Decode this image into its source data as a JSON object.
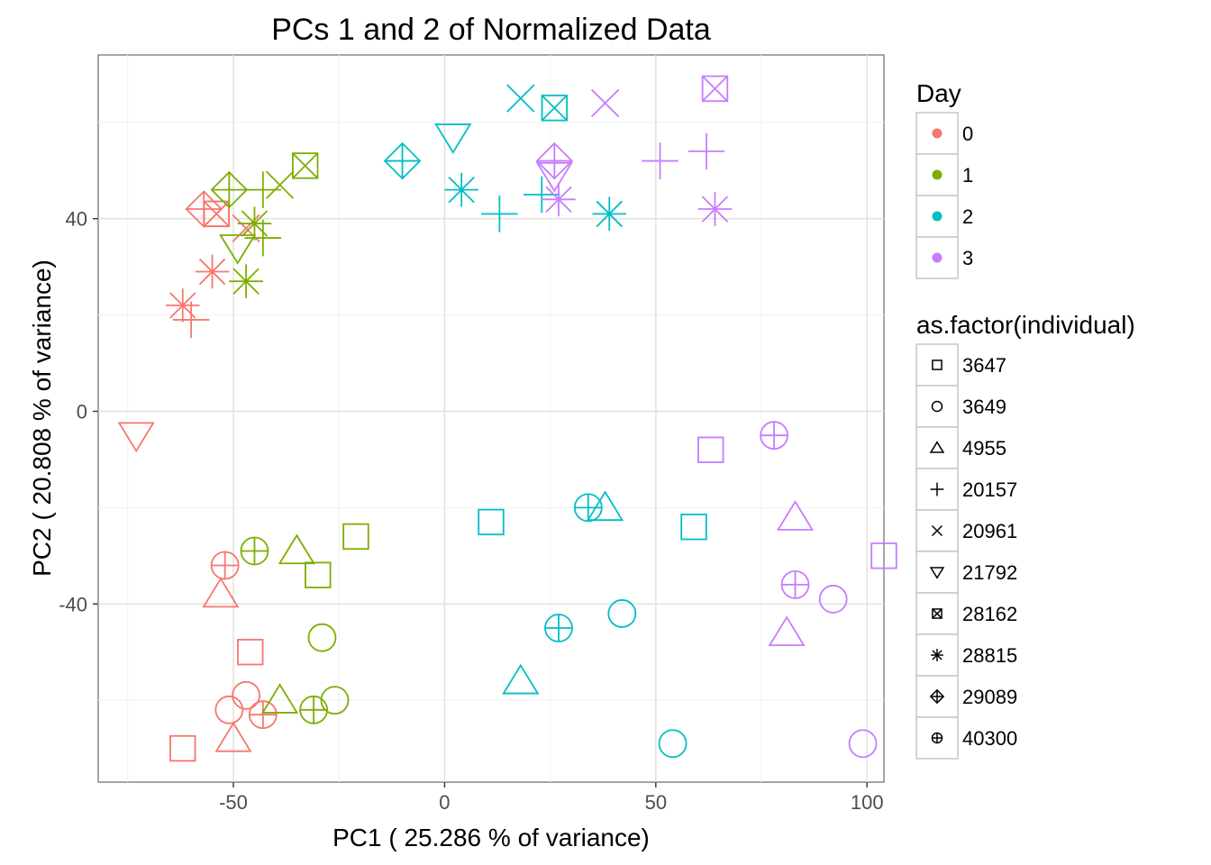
{
  "chart_data": {
    "type": "scatter",
    "title": "PCs 1 and 2 of Normalized Data",
    "xlabel": "PC1 ( 25.286 % of variance)",
    "ylabel": "PC2 ( 20.808 % of variance)",
    "xlim": [
      -82,
      104
    ],
    "ylim": [
      -77,
      74
    ],
    "x_ticks": [
      -50,
      0,
      50,
      100
    ],
    "x_tick_labels": [
      "-50",
      "0",
      "50",
      "100"
    ],
    "y_ticks": [
      -40,
      0,
      40
    ],
    "y_tick_labels": [
      "-40",
      "0",
      "40"
    ],
    "grid": true,
    "legend_position": "right",
    "color_legend": {
      "title": "Day",
      "entries": [
        {
          "label": "0",
          "color": "#F8766D"
        },
        {
          "label": "1",
          "color": "#7CAE00"
        },
        {
          "label": "2",
          "color": "#00BFC4"
        },
        {
          "label": "3",
          "color": "#C77CFF"
        }
      ]
    },
    "shape_legend": {
      "title": "as.factor(individual)",
      "entries": [
        {
          "label": "3647",
          "shape": "square"
        },
        {
          "label": "3649",
          "shape": "circle"
        },
        {
          "label": "4955",
          "shape": "triangle"
        },
        {
          "label": "20157",
          "shape": "plus"
        },
        {
          "label": "20961",
          "shape": "cross"
        },
        {
          "label": "21792",
          "shape": "triangle-down"
        },
        {
          "label": "28162",
          "shape": "square-cross"
        },
        {
          "label": "28815",
          "shape": "asterisk"
        },
        {
          "label": "29089",
          "shape": "diamond-plus"
        },
        {
          "label": "40300",
          "shape": "circle-plus"
        }
      ]
    },
    "points": [
      {
        "x": -62,
        "y": -70,
        "day": "0",
        "individual": "3647"
      },
      {
        "x": -46,
        "y": -50,
        "day": "0",
        "individual": "3647"
      },
      {
        "x": -54,
        "y": 41,
        "day": "0",
        "individual": "3647"
      },
      {
        "x": -51,
        "y": -62,
        "day": "0",
        "individual": "3649"
      },
      {
        "x": -47,
        "y": -59,
        "day": "0",
        "individual": "3649"
      },
      {
        "x": -53,
        "y": -38,
        "day": "0",
        "individual": "4955"
      },
      {
        "x": -50,
        "y": -68,
        "day": "0",
        "individual": "4955"
      },
      {
        "x": -60,
        "y": 19,
        "day": "0",
        "individual": "20157"
      },
      {
        "x": -47,
        "y": 38,
        "day": "0",
        "individual": "20961"
      },
      {
        "x": -73,
        "y": -5,
        "day": "0",
        "individual": "21792"
      },
      {
        "x": -54,
        "y": 41,
        "day": "0",
        "individual": "28162"
      },
      {
        "x": -62,
        "y": 22,
        "day": "0",
        "individual": "28815"
      },
      {
        "x": -55,
        "y": 29,
        "day": "0",
        "individual": "28815"
      },
      {
        "x": -57,
        "y": 42,
        "day": "0",
        "individual": "29089"
      },
      {
        "x": -52,
        "y": -32,
        "day": "0",
        "individual": "40300"
      },
      {
        "x": -43,
        "y": -63,
        "day": "0",
        "individual": "40300"
      },
      {
        "x": -21,
        "y": -26,
        "day": "1",
        "individual": "3647"
      },
      {
        "x": -30,
        "y": -34,
        "day": "1",
        "individual": "3647"
      },
      {
        "x": -29,
        "y": -47,
        "day": "1",
        "individual": "3649"
      },
      {
        "x": -26,
        "y": -60,
        "day": "1",
        "individual": "3649"
      },
      {
        "x": -35,
        "y": -29,
        "day": "1",
        "individual": "4955"
      },
      {
        "x": -39,
        "y": -60,
        "day": "1",
        "individual": "4955"
      },
      {
        "x": -43,
        "y": 46,
        "day": "1",
        "individual": "20157"
      },
      {
        "x": -43,
        "y": 36,
        "day": "1",
        "individual": "20157"
      },
      {
        "x": -39,
        "y": 47,
        "day": "1",
        "individual": "20961"
      },
      {
        "x": -49,
        "y": 34,
        "day": "1",
        "individual": "21792"
      },
      {
        "x": -33,
        "y": 51,
        "day": "1",
        "individual": "28162"
      },
      {
        "x": -47,
        "y": 27,
        "day": "1",
        "individual": "28815"
      },
      {
        "x": -45,
        "y": 39,
        "day": "1",
        "individual": "28815"
      },
      {
        "x": -51,
        "y": 46,
        "day": "1",
        "individual": "29089"
      },
      {
        "x": -45,
        "y": -29,
        "day": "1",
        "individual": "40300"
      },
      {
        "x": -31,
        "y": -62,
        "day": "1",
        "individual": "40300"
      },
      {
        "x": 11,
        "y": -23,
        "day": "2",
        "individual": "3647"
      },
      {
        "x": 59,
        "y": -24,
        "day": "2",
        "individual": "3647"
      },
      {
        "x": 42,
        "y": -42,
        "day": "2",
        "individual": "3649"
      },
      {
        "x": 54,
        "y": -69,
        "day": "2",
        "individual": "3649"
      },
      {
        "x": 38,
        "y": -20,
        "day": "2",
        "individual": "4955"
      },
      {
        "x": 18,
        "y": -56,
        "day": "2",
        "individual": "4955"
      },
      {
        "x": 13,
        "y": 41,
        "day": "2",
        "individual": "20157"
      },
      {
        "x": 23,
        "y": 45,
        "day": "2",
        "individual": "20157"
      },
      {
        "x": 18,
        "y": 65,
        "day": "2",
        "individual": "20961"
      },
      {
        "x": 2,
        "y": 57,
        "day": "2",
        "individual": "21792"
      },
      {
        "x": 26,
        "y": 63,
        "day": "2",
        "individual": "28162"
      },
      {
        "x": 4,
        "y": 46,
        "day": "2",
        "individual": "28815"
      },
      {
        "x": 39,
        "y": 41,
        "day": "2",
        "individual": "28815"
      },
      {
        "x": -10,
        "y": 52,
        "day": "2",
        "individual": "29089"
      },
      {
        "x": 34,
        "y": -20,
        "day": "2",
        "individual": "40300"
      },
      {
        "x": 27,
        "y": -45,
        "day": "2",
        "individual": "40300"
      },
      {
        "x": 63,
        "y": -8,
        "day": "3",
        "individual": "3647"
      },
      {
        "x": 104,
        "y": -30,
        "day": "3",
        "individual": "3647"
      },
      {
        "x": 92,
        "y": -39,
        "day": "3",
        "individual": "3649"
      },
      {
        "x": 99,
        "y": -69,
        "day": "3",
        "individual": "3649"
      },
      {
        "x": 83,
        "y": -22,
        "day": "3",
        "individual": "4955"
      },
      {
        "x": 81,
        "y": -46,
        "day": "3",
        "individual": "4955"
      },
      {
        "x": 51,
        "y": 52,
        "day": "3",
        "individual": "20157"
      },
      {
        "x": 62,
        "y": 54,
        "day": "3",
        "individual": "20157"
      },
      {
        "x": 38,
        "y": 64,
        "day": "3",
        "individual": "20961"
      },
      {
        "x": 26,
        "y": 49,
        "day": "3",
        "individual": "21792"
      },
      {
        "x": 64,
        "y": 67,
        "day": "3",
        "individual": "28162"
      },
      {
        "x": 27,
        "y": 44,
        "day": "3",
        "individual": "28815"
      },
      {
        "x": 64,
        "y": 42,
        "day": "3",
        "individual": "28815"
      },
      {
        "x": 26,
        "y": 52,
        "day": "3",
        "individual": "29089"
      },
      {
        "x": 78,
        "y": -5,
        "day": "3",
        "individual": "40300"
      },
      {
        "x": 83,
        "y": -36,
        "day": "3",
        "individual": "40300"
      }
    ]
  }
}
